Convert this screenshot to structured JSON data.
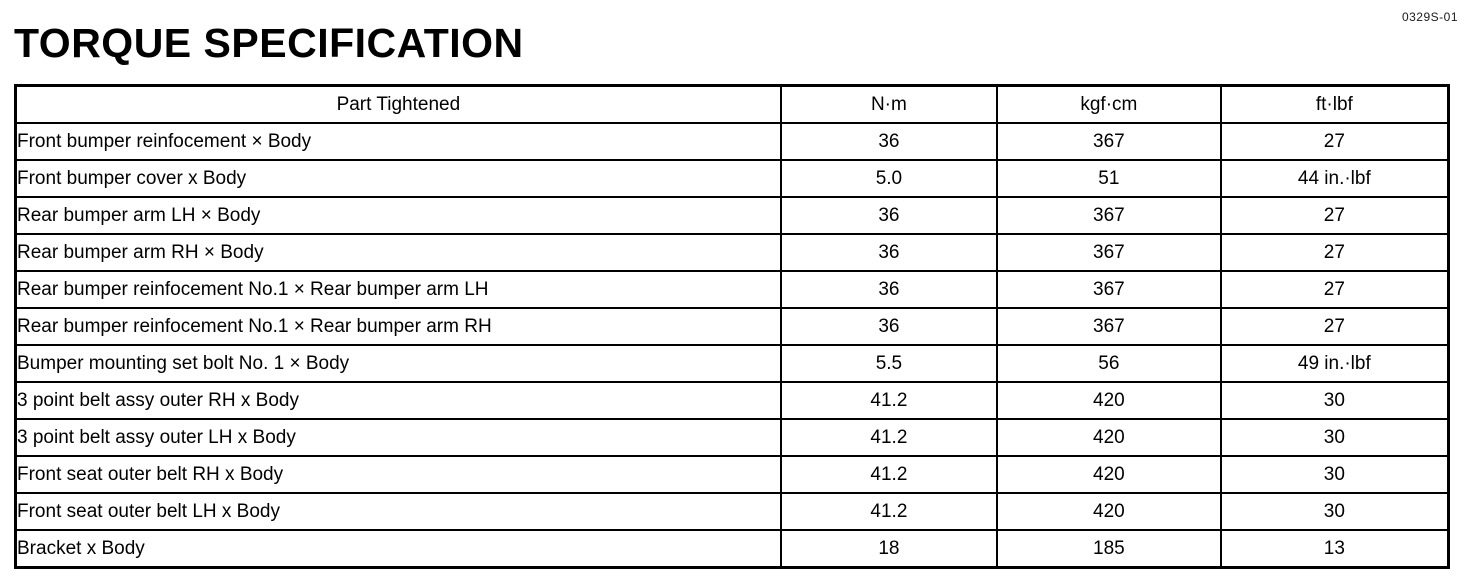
{
  "page": {
    "doc_code": "0329S-01",
    "title": "TORQUE SPECIFICATION"
  },
  "table": {
    "columns": [
      "Part Tightened",
      "N·m",
      "kgf·cm",
      "ft·lbf"
    ],
    "rows": [
      {
        "part": "Front bumper reinfocement × Body",
        "nm": "36",
        "kgfcm": "367",
        "ftlbf": "27"
      },
      {
        "part": "Front bumper cover x Body",
        "nm": "5.0",
        "kgfcm": "51",
        "ftlbf": "44 in.·lbf"
      },
      {
        "part": "Rear bumper arm LH × Body",
        "nm": "36",
        "kgfcm": "367",
        "ftlbf": "27"
      },
      {
        "part": "Rear bumper arm RH × Body",
        "nm": "36",
        "kgfcm": "367",
        "ftlbf": "27"
      },
      {
        "part": "Rear bumper reinfocement No.1 × Rear bumper arm LH",
        "nm": "36",
        "kgfcm": "367",
        "ftlbf": "27"
      },
      {
        "part": "Rear bumper reinfocement No.1 × Rear bumper arm RH",
        "nm": "36",
        "kgfcm": "367",
        "ftlbf": "27"
      },
      {
        "part": "Bumper mounting set bolt No. 1 × Body",
        "nm": "5.5",
        "kgfcm": "56",
        "ftlbf": "49 in.·lbf"
      },
      {
        "part": "3 point belt assy outer RH x Body",
        "nm": "41.2",
        "kgfcm": "420",
        "ftlbf": "30"
      },
      {
        "part": "3 point belt assy outer LH x Body",
        "nm": "41.2",
        "kgfcm": "420",
        "ftlbf": "30"
      },
      {
        "part": "Front seat outer belt RH x Body",
        "nm": "41.2",
        "kgfcm": "420",
        "ftlbf": "30"
      },
      {
        "part": "Front seat outer belt LH x Body",
        "nm": "41.2",
        "kgfcm": "420",
        "ftlbf": "30"
      },
      {
        "part": "Bracket x Body",
        "nm": "18",
        "kgfcm": "185",
        "ftlbf": "13"
      }
    ]
  }
}
